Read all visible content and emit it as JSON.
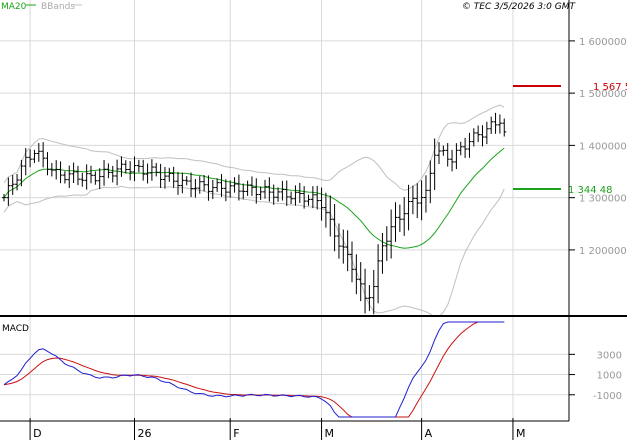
{
  "header": {
    "ma_label": "MA20",
    "bb_label": "BBands",
    "copyright": "© TEC 3/5/2026 3:0 GMT"
  },
  "colors": {
    "ma": "#1aa31a",
    "bbands": "#c0c0c0",
    "price": "#000000",
    "last_price": "#cc0000",
    "macd": "#1f1fd0",
    "signal": "#cc1111",
    "grid": "#d9d9d9",
    "axis": "#000000"
  },
  "chart_data": [
    {
      "type": "ohlc",
      "panel": "price",
      "title": "",
      "y_ticks": [
        {
          "value": 1200000,
          "label": "1 200000"
        },
        {
          "value": 1300000,
          "label": "1 300000"
        },
        {
          "value": 1400000,
          "label": "1 400000"
        },
        {
          "value": 1500000,
          "label": "1 500000"
        },
        {
          "value": 1600000,
          "label": "1 600000"
        }
      ],
      "ylim": [
        1085000,
        1640000
      ],
      "x_ticks": [
        {
          "index": 6,
          "label": "D"
        },
        {
          "index": 30,
          "label": "26"
        },
        {
          "index": 52,
          "label": "F"
        },
        {
          "index": 73,
          "label": "M"
        },
        {
          "index": 96,
          "label": "A"
        },
        {
          "index": 117,
          "label": "M"
        }
      ],
      "last_price": {
        "value": 1567500,
        "label": "1 567 5"
      },
      "ma_marker": {
        "value": 1344480,
        "label": "1 344 48"
      },
      "ohlc_sessions": 116,
      "series": [
        {
          "name": "MA20",
          "kind": "moving-average"
        },
        {
          "name": "BBands",
          "kind": "bollinger-bands"
        }
      ]
    },
    {
      "type": "line",
      "panel": "indicator",
      "title": "MACD",
      "y_ticks": [
        {
          "value": 3000,
          "label": "3000"
        },
        {
          "value": 1000,
          "label": "1000"
        },
        {
          "value": -1000,
          "label": "-1000"
        }
      ],
      "ylim": [
        -3200,
        6200
      ]
    }
  ]
}
